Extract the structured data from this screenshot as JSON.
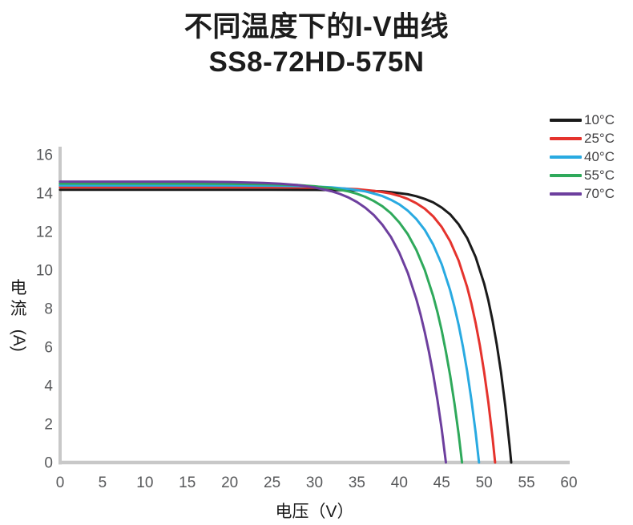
{
  "title": {
    "line1": "不同温度下的I-V曲线",
    "line2": "SS8-72HD-575N"
  },
  "chart_data": {
    "type": "line",
    "title": "不同温度下的I-V曲线",
    "subtitle": "SS8-72HD-575N",
    "xlabel": "电压（V）",
    "ylabel": "电流 (A)",
    "ylabel_chars": [
      "电",
      "流"
    ],
    "ylabel_unit": "(A)",
    "xlim": [
      0,
      60
    ],
    "ylim": [
      0,
      16
    ],
    "x_ticks": [
      0,
      5,
      10,
      15,
      20,
      25,
      30,
      35,
      40,
      45,
      50,
      55,
      60
    ],
    "y_ticks": [
      0,
      2,
      4,
      6,
      8,
      10,
      12,
      14,
      16
    ],
    "grid": false,
    "legend_position": "top-right",
    "axis_color": "#c8c8c8",
    "tick_color": "#58595b",
    "series": [
      {
        "name": "10°C",
        "color": "#1a1a1a",
        "isc_a": 14.18,
        "voc_v": 53.2,
        "points": [
          [
            0,
            14.18
          ],
          [
            5,
            14.18
          ],
          [
            10,
            14.18
          ],
          [
            15,
            14.18
          ],
          [
            20,
            14.18
          ],
          [
            25,
            14.18
          ],
          [
            30,
            14.17
          ],
          [
            33,
            14.16
          ],
          [
            35,
            14.15
          ],
          [
            37,
            14.11
          ],
          [
            38,
            14.09
          ],
          [
            39,
            14.05
          ],
          [
            40,
            14.0
          ],
          [
            41,
            13.94
          ],
          [
            42,
            13.84
          ],
          [
            43,
            13.7
          ],
          [
            44,
            13.52
          ],
          [
            45,
            13.25
          ],
          [
            46,
            12.9
          ],
          [
            47,
            12.38
          ],
          [
            48,
            11.67
          ],
          [
            49,
            10.68
          ],
          [
            50,
            9.3
          ],
          [
            50.5,
            8.42
          ],
          [
            51,
            7.36
          ],
          [
            51.5,
            6.13
          ],
          [
            52,
            4.68
          ],
          [
            52.5,
            2.95
          ],
          [
            53,
            0.9
          ],
          [
            53.2,
            0
          ]
        ]
      },
      {
        "name": "25°C",
        "color": "#e5332d",
        "isc_a": 14.3,
        "voc_v": 51.3,
        "points": [
          [
            0,
            14.3
          ],
          [
            5,
            14.3
          ],
          [
            10,
            14.3
          ],
          [
            15,
            14.3
          ],
          [
            20,
            14.3
          ],
          [
            25,
            14.3
          ],
          [
            28,
            14.29
          ],
          [
            30,
            14.28
          ],
          [
            33,
            14.25
          ],
          [
            35,
            14.21
          ],
          [
            37,
            14.12
          ],
          [
            38,
            14.06
          ],
          [
            39,
            13.98
          ],
          [
            40,
            13.86
          ],
          [
            41,
            13.7
          ],
          [
            42,
            13.48
          ],
          [
            43,
            13.19
          ],
          [
            44,
            12.79
          ],
          [
            45,
            12.24
          ],
          [
            46,
            11.5
          ],
          [
            47,
            10.49
          ],
          [
            48,
            9.12
          ],
          [
            48.5,
            8.26
          ],
          [
            49,
            7.25
          ],
          [
            49.5,
            6.08
          ],
          [
            50,
            4.71
          ],
          [
            50.5,
            3.12
          ],
          [
            51,
            1.26
          ],
          [
            51.3,
            0
          ]
        ]
      },
      {
        "name": "40°C",
        "color": "#29aae1",
        "isc_a": 14.4,
        "voc_v": 49.4,
        "points": [
          [
            0,
            14.4
          ],
          [
            5,
            14.4
          ],
          [
            10,
            14.4
          ],
          [
            15,
            14.4
          ],
          [
            20,
            14.4
          ],
          [
            25,
            14.39
          ],
          [
            28,
            14.37
          ],
          [
            30,
            14.34
          ],
          [
            32,
            14.3
          ],
          [
            34,
            14.22
          ],
          [
            36,
            14.09
          ],
          [
            37,
            13.98
          ],
          [
            38,
            13.85
          ],
          [
            39,
            13.66
          ],
          [
            40,
            13.42
          ],
          [
            41,
            13.09
          ],
          [
            42,
            12.66
          ],
          [
            43,
            12.09
          ],
          [
            44,
            11.32
          ],
          [
            45,
            10.3
          ],
          [
            46,
            8.95
          ],
          [
            46.5,
            8.11
          ],
          [
            47,
            7.15
          ],
          [
            47.5,
            6.03
          ],
          [
            48,
            4.75
          ],
          [
            48.5,
            3.26
          ],
          [
            49,
            1.56
          ],
          [
            49.4,
            0
          ]
        ]
      },
      {
        "name": "55°C",
        "color": "#2fa95b",
        "isc_a": 14.5,
        "voc_v": 47.4,
        "points": [
          [
            0,
            14.5
          ],
          [
            5,
            14.5
          ],
          [
            10,
            14.5
          ],
          [
            15,
            14.5
          ],
          [
            20,
            14.49
          ],
          [
            25,
            14.46
          ],
          [
            28,
            14.42
          ],
          [
            30,
            14.36
          ],
          [
            32,
            14.26
          ],
          [
            34,
            14.09
          ],
          [
            35,
            13.97
          ],
          [
            36,
            13.81
          ],
          [
            37,
            13.59
          ],
          [
            38,
            13.32
          ],
          [
            39,
            12.96
          ],
          [
            40,
            12.48
          ],
          [
            41,
            11.87
          ],
          [
            42,
            11.06
          ],
          [
            43,
            10.01
          ],
          [
            44,
            8.64
          ],
          [
            44.5,
            7.81
          ],
          [
            45,
            6.85
          ],
          [
            45.5,
            5.76
          ],
          [
            46,
            4.52
          ],
          [
            46.5,
            3.09
          ],
          [
            47,
            1.47
          ],
          [
            47.4,
            0
          ]
        ]
      },
      {
        "name": "70°C",
        "color": "#6d3f9e",
        "isc_a": 14.6,
        "voc_v": 45.5,
        "points": [
          [
            0,
            14.6
          ],
          [
            5,
            14.6
          ],
          [
            10,
            14.6
          ],
          [
            15,
            14.6
          ],
          [
            20,
            14.58
          ],
          [
            24,
            14.53
          ],
          [
            26,
            14.49
          ],
          [
            28,
            14.42
          ],
          [
            30,
            14.3
          ],
          [
            32,
            14.1
          ],
          [
            33,
            13.96
          ],
          [
            34,
            13.78
          ],
          [
            35,
            13.54
          ],
          [
            36,
            13.24
          ],
          [
            37,
            12.86
          ],
          [
            38,
            12.36
          ],
          [
            39,
            11.73
          ],
          [
            40,
            10.91
          ],
          [
            41,
            9.86
          ],
          [
            42,
            8.51
          ],
          [
            42.5,
            7.7
          ],
          [
            43,
            6.78
          ],
          [
            43.5,
            5.74
          ],
          [
            44,
            4.57
          ],
          [
            44.5,
            3.23
          ],
          [
            45,
            1.72
          ],
          [
            45.5,
            0
          ]
        ]
      }
    ]
  }
}
